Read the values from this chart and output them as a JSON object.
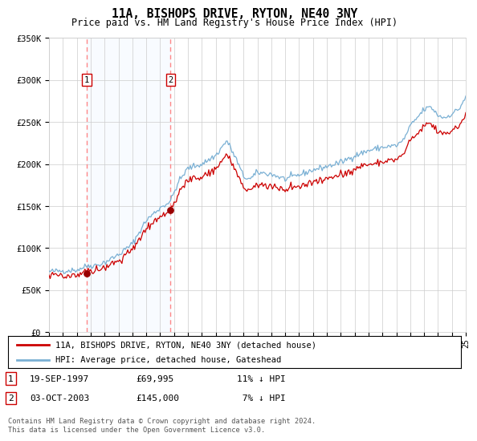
{
  "title": "11A, BISHOPS DRIVE, RYTON, NE40 3NY",
  "subtitle": "Price paid vs. HM Land Registry's House Price Index (HPI)",
  "sale1_date": "19-SEP-1997",
  "sale1_price": 69995,
  "sale1_label": "1",
  "sale1_year": 1997.72,
  "sale2_date": "03-OCT-2003",
  "sale2_price": 145000,
  "sale2_label": "2",
  "sale2_year": 2003.75,
  "legend_line1": "11A, BISHOPS DRIVE, RYTON, NE40 3NY (detached house)",
  "legend_line2": "HPI: Average price, detached house, Gateshead",
  "footer": "Contains HM Land Registry data © Crown copyright and database right 2024.\nThis data is licensed under the Open Government Licence v3.0.",
  "ylim": [
    0,
    350000
  ],
  "xlim": [
    1995,
    2025
  ],
  "line_color_red": "#cc0000",
  "line_color_blue": "#7ab0d4",
  "fill_color": "#ddeeff",
  "vline_color": "#ff8888",
  "dot_color": "#990000",
  "background_color": "#ffffff",
  "grid_color": "#cccccc"
}
